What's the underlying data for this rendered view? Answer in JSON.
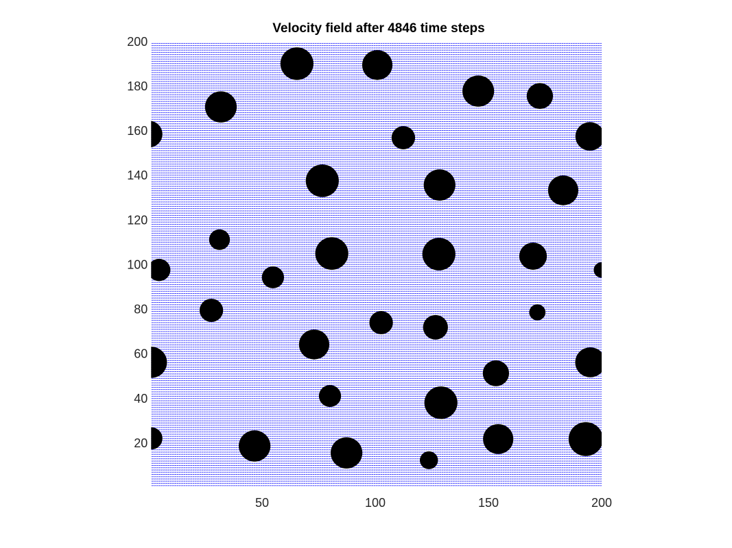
{
  "chart_data": {
    "type": "quiver",
    "title": "Velocity field after 4846 time steps",
    "xlim": [
      1,
      200
    ],
    "ylim": [
      1,
      200
    ],
    "xticks": [
      50,
      100,
      150,
      200
    ],
    "yticks": [
      20,
      40,
      60,
      80,
      100,
      120,
      140,
      160,
      180,
      200
    ],
    "color": "#0000ff",
    "obstacle_color": "#000000",
    "obstacles": [
      {
        "x": 65.4,
        "y": 190.5,
        "r": 7.3
      },
      {
        "x": 100.9,
        "y": 189.9,
        "r": 6.7
      },
      {
        "x": 145.5,
        "y": 178.2,
        "r": 7
      },
      {
        "x": 172.7,
        "y": 176,
        "r": 5.8
      },
      {
        "x": 31.8,
        "y": 171.1,
        "r": 7
      },
      {
        "x": 112.4,
        "y": 157.3,
        "r": 5.2
      },
      {
        "x": 194.8,
        "y": 157.9,
        "r": 6.4
      },
      {
        "x": 0,
        "y": 158.9,
        "r": 6
      },
      {
        "x": 76.6,
        "y": 138,
        "r": 7.3
      },
      {
        "x": 128.4,
        "y": 136.1,
        "r": 7
      },
      {
        "x": 183,
        "y": 133.7,
        "r": 6.7
      },
      {
        "x": 31.2,
        "y": 111.6,
        "r": 4.6
      },
      {
        "x": 80.8,
        "y": 105.4,
        "r": 7.3
      },
      {
        "x": 128.1,
        "y": 105.1,
        "r": 7.3
      },
      {
        "x": 169.7,
        "y": 104.2,
        "r": 6.1
      },
      {
        "x": 4.5,
        "y": 98,
        "r": 5
      },
      {
        "x": 54.8,
        "y": 94.7,
        "r": 4.9
      },
      {
        "x": 200,
        "y": 98,
        "r": 3.5
      },
      {
        "x": 27.6,
        "y": 79.9,
        "r": 5.2
      },
      {
        "x": 102.6,
        "y": 74.4,
        "r": 5.2
      },
      {
        "x": 126.6,
        "y": 72.3,
        "r": 5.5
      },
      {
        "x": 171.6,
        "y": 79,
        "r": 3.6
      },
      {
        "x": 73,
        "y": 64.6,
        "r": 6.7
      },
      {
        "x": 1,
        "y": 56.6,
        "r": 7
      },
      {
        "x": 195,
        "y": 56.6,
        "r": 6.7
      },
      {
        "x": 153.3,
        "y": 51.7,
        "r": 5.8
      },
      {
        "x": 80,
        "y": 41.5,
        "r": 4.9
      },
      {
        "x": 129,
        "y": 38.5,
        "r": 7.3
      },
      {
        "x": 154.3,
        "y": 22.2,
        "r": 6.7
      },
      {
        "x": 193,
        "y": 22.2,
        "r": 7.6
      },
      {
        "x": 1,
        "y": 22.5,
        "r": 5
      },
      {
        "x": 46.7,
        "y": 19.1,
        "r": 7
      },
      {
        "x": 87.3,
        "y": 16,
        "r": 7
      },
      {
        "x": 123.7,
        "y": 12.7,
        "r": 4
      }
    ]
  }
}
